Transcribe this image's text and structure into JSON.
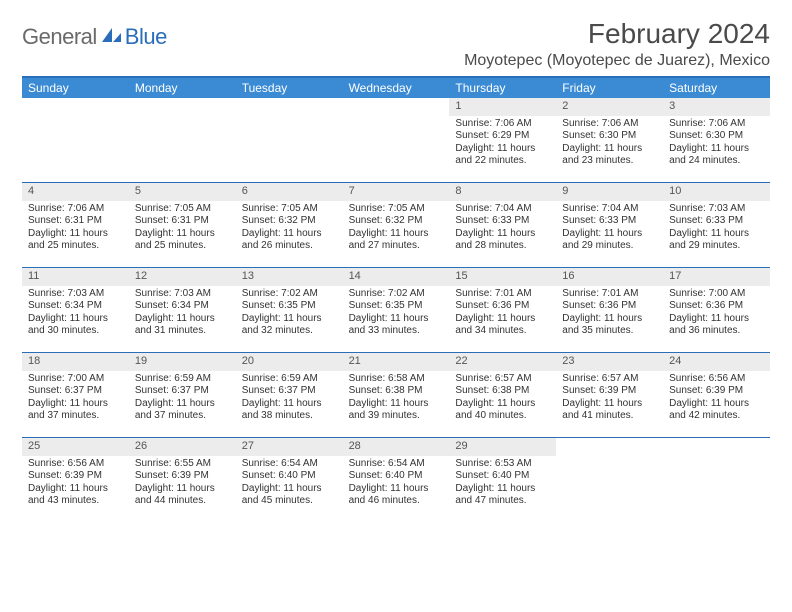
{
  "brand": {
    "word1": "General",
    "word2": "Blue"
  },
  "title": "February 2024",
  "location": "Moyotepec (Moyotepec de Juarez), Mexico",
  "colors": {
    "header_bar": "#3b8bd4",
    "rule": "#2a6db8",
    "daynum_bg": "#ececec",
    "text": "#333333",
    "logo_grey": "#6a6a6a",
    "logo_blue": "#2a6db8"
  },
  "days_of_week": [
    "Sunday",
    "Monday",
    "Tuesday",
    "Wednesday",
    "Thursday",
    "Friday",
    "Saturday"
  ],
  "weeks": [
    [
      null,
      null,
      null,
      null,
      {
        "n": "1",
        "sr": "Sunrise: 7:06 AM",
        "ss": "Sunset: 6:29 PM",
        "d1": "Daylight: 11 hours",
        "d2": "and 22 minutes."
      },
      {
        "n": "2",
        "sr": "Sunrise: 7:06 AM",
        "ss": "Sunset: 6:30 PM",
        "d1": "Daylight: 11 hours",
        "d2": "and 23 minutes."
      },
      {
        "n": "3",
        "sr": "Sunrise: 7:06 AM",
        "ss": "Sunset: 6:30 PM",
        "d1": "Daylight: 11 hours",
        "d2": "and 24 minutes."
      }
    ],
    [
      {
        "n": "4",
        "sr": "Sunrise: 7:06 AM",
        "ss": "Sunset: 6:31 PM",
        "d1": "Daylight: 11 hours",
        "d2": "and 25 minutes."
      },
      {
        "n": "5",
        "sr": "Sunrise: 7:05 AM",
        "ss": "Sunset: 6:31 PM",
        "d1": "Daylight: 11 hours",
        "d2": "and 25 minutes."
      },
      {
        "n": "6",
        "sr": "Sunrise: 7:05 AM",
        "ss": "Sunset: 6:32 PM",
        "d1": "Daylight: 11 hours",
        "d2": "and 26 minutes."
      },
      {
        "n": "7",
        "sr": "Sunrise: 7:05 AM",
        "ss": "Sunset: 6:32 PM",
        "d1": "Daylight: 11 hours",
        "d2": "and 27 minutes."
      },
      {
        "n": "8",
        "sr": "Sunrise: 7:04 AM",
        "ss": "Sunset: 6:33 PM",
        "d1": "Daylight: 11 hours",
        "d2": "and 28 minutes."
      },
      {
        "n": "9",
        "sr": "Sunrise: 7:04 AM",
        "ss": "Sunset: 6:33 PM",
        "d1": "Daylight: 11 hours",
        "d2": "and 29 minutes."
      },
      {
        "n": "10",
        "sr": "Sunrise: 7:03 AM",
        "ss": "Sunset: 6:33 PM",
        "d1": "Daylight: 11 hours",
        "d2": "and 29 minutes."
      }
    ],
    [
      {
        "n": "11",
        "sr": "Sunrise: 7:03 AM",
        "ss": "Sunset: 6:34 PM",
        "d1": "Daylight: 11 hours",
        "d2": "and 30 minutes."
      },
      {
        "n": "12",
        "sr": "Sunrise: 7:03 AM",
        "ss": "Sunset: 6:34 PM",
        "d1": "Daylight: 11 hours",
        "d2": "and 31 minutes."
      },
      {
        "n": "13",
        "sr": "Sunrise: 7:02 AM",
        "ss": "Sunset: 6:35 PM",
        "d1": "Daylight: 11 hours",
        "d2": "and 32 minutes."
      },
      {
        "n": "14",
        "sr": "Sunrise: 7:02 AM",
        "ss": "Sunset: 6:35 PM",
        "d1": "Daylight: 11 hours",
        "d2": "and 33 minutes."
      },
      {
        "n": "15",
        "sr": "Sunrise: 7:01 AM",
        "ss": "Sunset: 6:36 PM",
        "d1": "Daylight: 11 hours",
        "d2": "and 34 minutes."
      },
      {
        "n": "16",
        "sr": "Sunrise: 7:01 AM",
        "ss": "Sunset: 6:36 PM",
        "d1": "Daylight: 11 hours",
        "d2": "and 35 minutes."
      },
      {
        "n": "17",
        "sr": "Sunrise: 7:00 AM",
        "ss": "Sunset: 6:36 PM",
        "d1": "Daylight: 11 hours",
        "d2": "and 36 minutes."
      }
    ],
    [
      {
        "n": "18",
        "sr": "Sunrise: 7:00 AM",
        "ss": "Sunset: 6:37 PM",
        "d1": "Daylight: 11 hours",
        "d2": "and 37 minutes."
      },
      {
        "n": "19",
        "sr": "Sunrise: 6:59 AM",
        "ss": "Sunset: 6:37 PM",
        "d1": "Daylight: 11 hours",
        "d2": "and 37 minutes."
      },
      {
        "n": "20",
        "sr": "Sunrise: 6:59 AM",
        "ss": "Sunset: 6:37 PM",
        "d1": "Daylight: 11 hours",
        "d2": "and 38 minutes."
      },
      {
        "n": "21",
        "sr": "Sunrise: 6:58 AM",
        "ss": "Sunset: 6:38 PM",
        "d1": "Daylight: 11 hours",
        "d2": "and 39 minutes."
      },
      {
        "n": "22",
        "sr": "Sunrise: 6:57 AM",
        "ss": "Sunset: 6:38 PM",
        "d1": "Daylight: 11 hours",
        "d2": "and 40 minutes."
      },
      {
        "n": "23",
        "sr": "Sunrise: 6:57 AM",
        "ss": "Sunset: 6:39 PM",
        "d1": "Daylight: 11 hours",
        "d2": "and 41 minutes."
      },
      {
        "n": "24",
        "sr": "Sunrise: 6:56 AM",
        "ss": "Sunset: 6:39 PM",
        "d1": "Daylight: 11 hours",
        "d2": "and 42 minutes."
      }
    ],
    [
      {
        "n": "25",
        "sr": "Sunrise: 6:56 AM",
        "ss": "Sunset: 6:39 PM",
        "d1": "Daylight: 11 hours",
        "d2": "and 43 minutes."
      },
      {
        "n": "26",
        "sr": "Sunrise: 6:55 AM",
        "ss": "Sunset: 6:39 PM",
        "d1": "Daylight: 11 hours",
        "d2": "and 44 minutes."
      },
      {
        "n": "27",
        "sr": "Sunrise: 6:54 AM",
        "ss": "Sunset: 6:40 PM",
        "d1": "Daylight: 11 hours",
        "d2": "and 45 minutes."
      },
      {
        "n": "28",
        "sr": "Sunrise: 6:54 AM",
        "ss": "Sunset: 6:40 PM",
        "d1": "Daylight: 11 hours",
        "d2": "and 46 minutes."
      },
      {
        "n": "29",
        "sr": "Sunrise: 6:53 AM",
        "ss": "Sunset: 6:40 PM",
        "d1": "Daylight: 11 hours",
        "d2": "and 47 minutes."
      },
      null,
      null
    ]
  ]
}
